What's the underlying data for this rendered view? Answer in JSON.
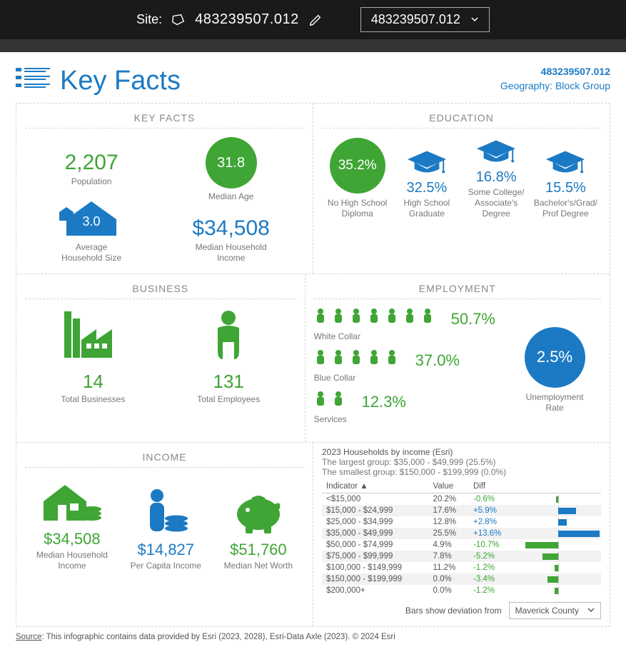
{
  "colors": {
    "green": "#3fa535",
    "blue": "#1c7ac4",
    "text_muted": "#777777",
    "header_bg": "#1a1a1a"
  },
  "topbar": {
    "site_label": "Site:",
    "site_value": "483239507.012",
    "dropdown_value": "483239507.012"
  },
  "header": {
    "title": "Key Facts",
    "id_line": "483239507.012",
    "geo_line": "Geography: Block Group"
  },
  "sections": {
    "keyfacts": {
      "title": "KEY FACTS",
      "population": {
        "value": "2,207",
        "label": "Population"
      },
      "hh_size": {
        "value": "3.0",
        "label": "Average\nHousehold Size"
      },
      "median_age": {
        "value": "31.8",
        "label": "Median Age"
      },
      "median_hh_income": {
        "value": "$34,508",
        "label": "Median Household\nIncome"
      }
    },
    "education": {
      "title": "EDUCATION",
      "items": [
        {
          "pct": "35.2%",
          "label": "No High School\nDiploma",
          "style": "circle"
        },
        {
          "pct": "32.5%",
          "label": "High School\nGraduate",
          "style": "cap"
        },
        {
          "pct": "16.8%",
          "label": "Some College/\nAssociate's Degree",
          "style": "cap"
        },
        {
          "pct": "15.5%",
          "label": "Bachelor's/Grad/\nProf Degree",
          "style": "cap"
        }
      ]
    },
    "business": {
      "title": "BUSINESS",
      "total_businesses": {
        "value": "14",
        "label": "Total Businesses"
      },
      "total_employees": {
        "value": "131",
        "label": "Total Employees"
      }
    },
    "employment": {
      "title": "EMPLOYMENT",
      "white_collar": {
        "pct": "50.7%",
        "label": "White Collar",
        "icon_count": 7
      },
      "blue_collar": {
        "pct": "37.0%",
        "label": "Blue Collar",
        "icon_count": 5
      },
      "services": {
        "pct": "12.3%",
        "label": "Services",
        "icon_count": 2
      },
      "unemployment": {
        "pct": "2.5%",
        "label": "Unemployment\nRate"
      }
    },
    "income": {
      "title": "INCOME",
      "median_hh": {
        "value": "$34,508",
        "label": "Median Household\nIncome",
        "color": "green"
      },
      "per_capita": {
        "value": "$14,827",
        "label": "Per Capita Income",
        "color": "blue"
      },
      "net_worth": {
        "value": "$51,760",
        "label": "Median Net Worth",
        "color": "green"
      }
    },
    "income_table": {
      "heading": "2023 Households by income (Esri)",
      "largest": "The largest group: $35,000 - $49,999 (25.5%)",
      "smallest": "The smallest group: $150,000 - $199,999 (0.0%)",
      "columns": [
        "Indicator ▲",
        "Value",
        "Diff",
        ""
      ],
      "rows": [
        {
          "label": "<$15,000",
          "value": "20.2%",
          "diff": -0.6
        },
        {
          "label": "$15,000 - $24,999",
          "value": "17.6%",
          "diff": 5.9
        },
        {
          "label": "$25,000 - $34,999",
          "value": "12.8%",
          "diff": 2.8
        },
        {
          "label": "$35,000 - $49,999",
          "value": "25.5%",
          "diff": 13.6
        },
        {
          "label": "$50,000 - $74,999",
          "value": "4.9%",
          "diff": -10.7
        },
        {
          "label": "$75,000 - $99,999",
          "value": "7.8%",
          "diff": -5.2
        },
        {
          "label": "$100,000 - $149,999",
          "value": "11.2%",
          "diff": -1.2
        },
        {
          "label": "$150,000 - $199,999",
          "value": "0.0%",
          "diff": -3.4
        },
        {
          "label": "$200,000+",
          "value": "0.0%",
          "diff": -1.2
        }
      ],
      "bar_max_abs": 14,
      "footer_label": "Bars show deviation from",
      "comparison": "Maverick County"
    }
  },
  "source": {
    "label": "Source",
    "text": ": This infographic contains data provided by Esri (2023, 2028), Esri-Data Axle (2023). © 2024 Esri"
  }
}
